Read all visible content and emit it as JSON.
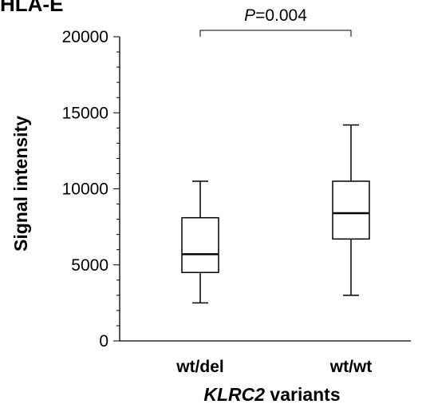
{
  "heading": "HLA-E",
  "chart_data": {
    "type": "box",
    "categories": [
      "wt/del",
      "wt/wt"
    ],
    "boxes": [
      {
        "category": "wt/del",
        "whisker_low": 2500,
        "q1": 4500,
        "median": 5700,
        "q3": 8100,
        "whisker_high": 10500
      },
      {
        "category": "wt/wt",
        "whisker_low": 3000,
        "q1": 6700,
        "median": 8400,
        "q3": 10500,
        "whisker_high": 14200
      }
    ],
    "ylabel": "Signal intensity",
    "xlabel_italic": "KLRC2",
    "xlabel_rest": " variants",
    "ylim": [
      0,
      20000
    ],
    "yticks": [
      "0",
      "5000",
      "10000",
      "15000",
      "20000"
    ],
    "significance": {
      "p_prefix": "P",
      "p_rest": "=0.004",
      "between": [
        "wt/del",
        "wt/wt"
      ]
    },
    "grid": false,
    "legend": "none"
  }
}
